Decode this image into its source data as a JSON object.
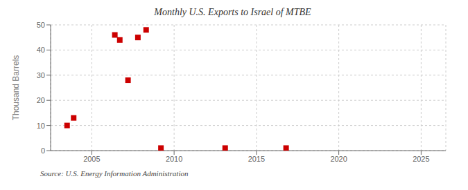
{
  "chart_data": {
    "type": "scatter",
    "title": "Monthly U.S. Exports to Israel of MTBE",
    "ylabel": "Thousand Barrels",
    "annotations": [
      "Source: U.S. Energy Information Administration"
    ],
    "x": [
      2003.5,
      2003.9,
      2006.4,
      2006.7,
      2007.2,
      2007.8,
      2008.3,
      2009.2,
      2013.1,
      2016.8
    ],
    "values": [
      10,
      13,
      46,
      44,
      28,
      45,
      48,
      1,
      1,
      1
    ],
    "xlim": [
      2002.5,
      2026.5
    ],
    "ylim": [
      0,
      50
    ],
    "xticks": [
      2005,
      2010,
      2015,
      2020,
      2025
    ],
    "yticks": [
      0,
      10,
      20,
      30,
      40,
      50
    ],
    "grid": true,
    "color": "#cc0000",
    "marker": "square"
  }
}
